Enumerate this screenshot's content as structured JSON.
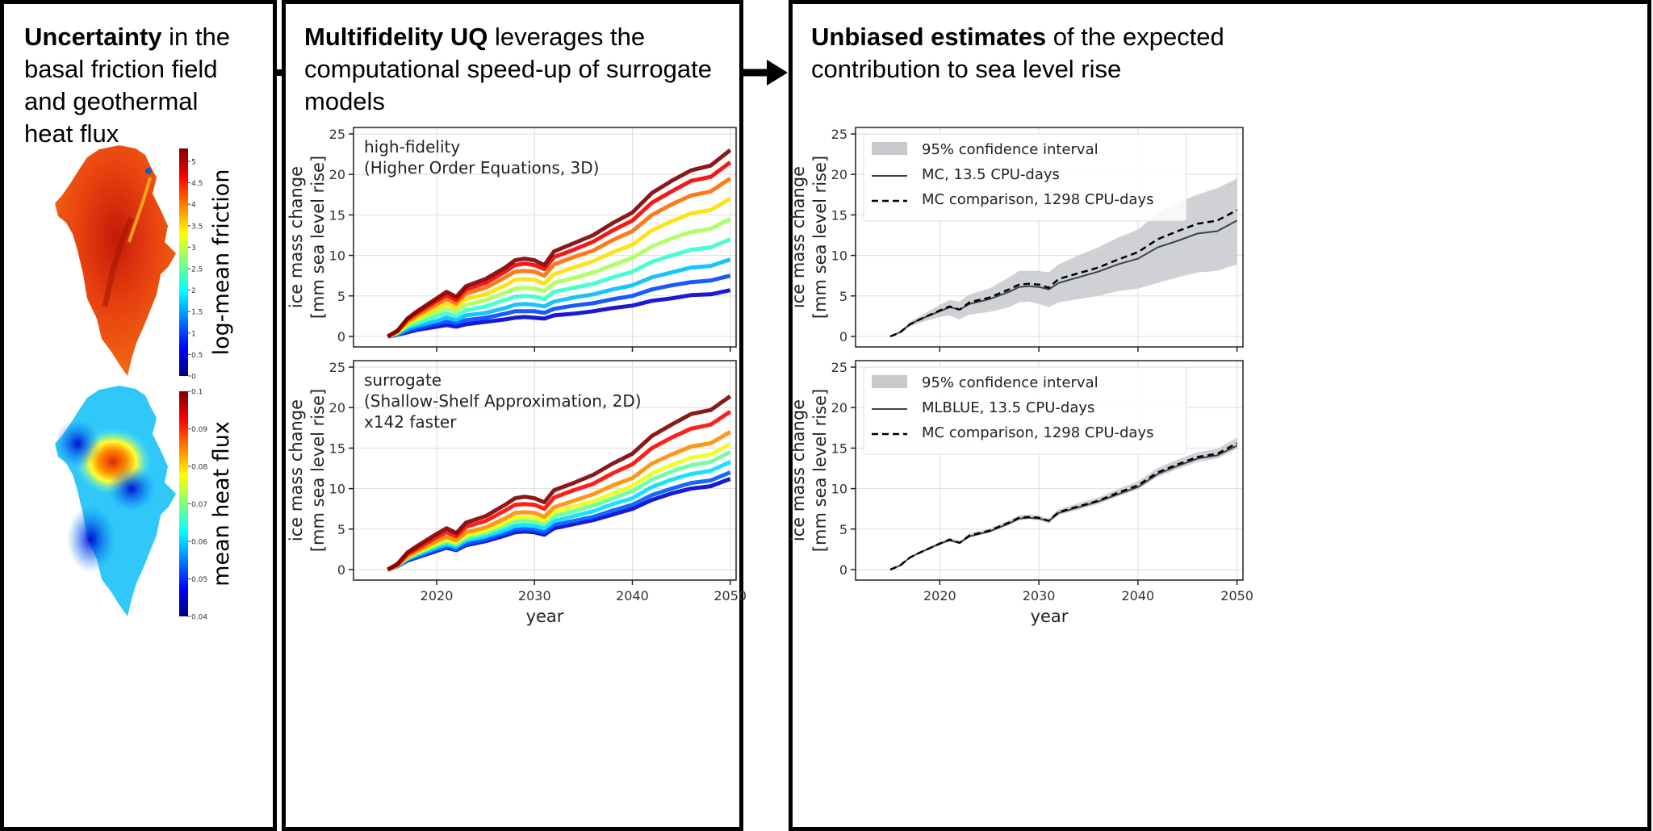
{
  "panels": {
    "left": {
      "title_bold": "Uncertainty",
      "title_rest": " in the basal friction field and geothermal heat flux"
    },
    "middle": {
      "title_bold": "Multifidelity UQ",
      "title_rest": " leverages the computational speed-up of surrogate models"
    },
    "right": {
      "title_bold": "Unbiased estimates",
      "title_rest": " of the expected contribution to sea level rise"
    }
  },
  "maps": [
    {
      "label": "log-mean friction",
      "colormap": "jet",
      "ticks": [
        "0",
        "0.5",
        "1",
        "1.5",
        "2",
        "2.5",
        "3",
        "3.5",
        "4",
        "4.5",
        "5"
      ],
      "range": [
        0,
        5.3
      ]
    },
    {
      "label": "mean heat flux",
      "colormap": "jet",
      "ticks": [
        "0.04",
        "0.05",
        "0.06",
        "0.07",
        "0.08",
        "0.09",
        "0.1"
      ],
      "range": [
        0.04,
        0.1
      ]
    }
  ],
  "common_axes": {
    "ylabel_line1": "ice mass change",
    "ylabel_line2": "[mm sea level rise]",
    "xlabel": "year",
    "yticks": [
      0,
      5,
      10,
      15,
      20,
      25
    ],
    "xticks": [
      2020,
      2030,
      2040,
      2050
    ],
    "grid": true
  },
  "chart_data": [
    {
      "id": "hf",
      "type": "line",
      "annotation": [
        "high-fidelity",
        "(Higher Order Equations, 3D)"
      ],
      "colormap": "jet",
      "x": [
        2015,
        2016,
        2017,
        2018,
        2020,
        2021,
        2022,
        2023,
        2025,
        2027,
        2028,
        2029,
        2030,
        2031,
        2032,
        2034,
        2036,
        2038,
        2040,
        2042,
        2044,
        2046,
        2048,
        2050
      ],
      "series": [
        {
          "values": [
            0,
            0.2,
            0.5,
            0.8,
            1.2,
            1.4,
            1.2,
            1.5,
            1.8,
            2.1,
            2.3,
            2.4,
            2.3,
            2.2,
            2.6,
            2.8,
            3.1,
            3.5,
            3.8,
            4.4,
            4.7,
            5.1,
            5.2,
            5.7
          ]
        },
        {
          "values": [
            0,
            0.2,
            0.7,
            1.0,
            1.5,
            1.8,
            1.6,
            2.0,
            2.3,
            2.8,
            3.1,
            3.1,
            3.1,
            2.9,
            3.4,
            3.8,
            4.1,
            4.6,
            5.0,
            5.8,
            6.3,
            6.7,
            6.9,
            7.5
          ]
        },
        {
          "values": [
            0,
            0.3,
            0.9,
            1.3,
            1.9,
            2.3,
            2.0,
            2.6,
            2.9,
            3.5,
            3.9,
            4.0,
            3.9,
            3.7,
            4.3,
            4.8,
            5.2,
            5.8,
            6.3,
            7.3,
            7.9,
            8.5,
            8.7,
            9.5
          ]
        },
        {
          "values": [
            0,
            0.4,
            1.2,
            1.6,
            2.5,
            2.8,
            2.5,
            3.2,
            3.7,
            4.5,
            4.9,
            5.0,
            4.9,
            4.6,
            5.5,
            6.0,
            6.5,
            7.3,
            8.0,
            9.2,
            10.0,
            10.7,
            11.0,
            12.0
          ]
        },
        {
          "values": [
            0,
            0.5,
            1.4,
            2.0,
            3.0,
            3.4,
            3.1,
            3.9,
            4.5,
            5.4,
            5.9,
            6.0,
            5.9,
            5.6,
            6.6,
            7.2,
            7.9,
            8.8,
            9.7,
            11.1,
            12.1,
            12.9,
            13.3,
            14.5
          ]
        },
        {
          "values": [
            0,
            0.5,
            1.6,
            2.3,
            3.5,
            4.0,
            3.6,
            4.6,
            5.2,
            6.3,
            7.0,
            7.1,
            7.0,
            6.5,
            7.7,
            8.5,
            9.3,
            10.4,
            11.3,
            13.1,
            14.2,
            15.2,
            15.6,
            17.0
          ]
        },
        {
          "values": [
            0,
            0.6,
            1.9,
            2.6,
            4.0,
            4.6,
            4.1,
            5.3,
            6.0,
            7.3,
            8.0,
            8.1,
            8.0,
            7.5,
            8.9,
            9.8,
            10.6,
            11.9,
            13.0,
            15.0,
            16.3,
            17.4,
            17.9,
            19.5
          ]
        },
        {
          "values": [
            0,
            0.7,
            2.1,
            2.9,
            4.4,
            5.1,
            4.5,
            5.8,
            6.6,
            8.0,
            8.8,
            9.0,
            8.8,
            8.3,
            9.8,
            10.7,
            11.7,
            13.1,
            14.3,
            16.5,
            17.9,
            19.2,
            19.7,
            21.5
          ]
        },
        {
          "values": [
            0,
            0.7,
            2.2,
            3.1,
            4.7,
            5.5,
            4.9,
            6.2,
            7.1,
            8.5,
            9.4,
            9.6,
            9.4,
            8.8,
            10.5,
            11.5,
            12.5,
            14.0,
            15.3,
            17.7,
            19.2,
            20.5,
            21.1,
            23.0
          ]
        }
      ]
    },
    {
      "id": "sur",
      "type": "line",
      "annotation": [
        "surrogate",
        "(Shallow-Shelf Approximation, 2D)",
        "x142 faster"
      ],
      "colormap": "jet",
      "x": [
        2015,
        2016,
        2017,
        2018,
        2020,
        2021,
        2022,
        2023,
        2025,
        2027,
        2028,
        2029,
        2030,
        2031,
        2032,
        2034,
        2036,
        2038,
        2040,
        2042,
        2044,
        2046,
        2048,
        2050
      ],
      "series": [
        {
          "values": [
            0,
            0.4,
            1.1,
            1.5,
            2.3,
            2.7,
            2.4,
            3.0,
            3.5,
            4.2,
            4.6,
            4.7,
            4.6,
            4.3,
            5.1,
            5.6,
            6.1,
            6.8,
            7.5,
            8.6,
            9.4,
            10.0,
            10.3,
            11.2
          ]
        },
        {
          "values": [
            0,
            0.4,
            1.2,
            1.6,
            2.5,
            2.8,
            2.5,
            3.2,
            3.7,
            4.5,
            4.9,
            5.0,
            4.9,
            4.6,
            5.5,
            6.0,
            6.5,
            7.3,
            8.0,
            9.2,
            10.0,
            10.7,
            11.0,
            12.0
          ]
        },
        {
          "values": [
            0,
            0.4,
            1.3,
            1.8,
            2.7,
            3.1,
            2.8,
            3.6,
            4.1,
            4.9,
            5.4,
            5.5,
            5.4,
            5.1,
            6.0,
            6.6,
            7.2,
            8.1,
            8.8,
            10.2,
            11.1,
            11.8,
            12.2,
            13.3
          ]
        },
        {
          "values": [
            0,
            0.5,
            1.4,
            2.0,
            3.0,
            3.4,
            3.1,
            3.9,
            4.5,
            5.4,
            5.9,
            6.0,
            5.9,
            5.6,
            6.6,
            7.2,
            7.9,
            8.8,
            9.7,
            11.1,
            12.1,
            12.9,
            13.3,
            14.5
          ]
        },
        {
          "values": [
            0,
            0.5,
            1.5,
            2.1,
            3.2,
            3.7,
            3.3,
            4.2,
            4.8,
            5.8,
            6.4,
            6.5,
            6.4,
            6.0,
            7.1,
            7.8,
            8.4,
            9.4,
            10.3,
            11.9,
            12.9,
            13.8,
            14.2,
            15.5
          ]
        },
        {
          "values": [
            0,
            0.5,
            1.6,
            2.3,
            3.5,
            4.0,
            3.6,
            4.6,
            5.2,
            6.3,
            7.0,
            7.1,
            7.0,
            6.5,
            7.7,
            8.5,
            9.3,
            10.4,
            11.3,
            13.1,
            14.2,
            15.2,
            15.6,
            17.0
          ]
        },
        {
          "values": [
            0,
            0.6,
            1.9,
            2.6,
            4.0,
            4.6,
            4.1,
            5.3,
            6.0,
            7.3,
            8.0,
            8.1,
            8.0,
            7.5,
            8.9,
            9.8,
            10.6,
            11.9,
            13.0,
            15.0,
            16.3,
            17.4,
            17.9,
            19.5
          ]
        },
        {
          "values": [
            0,
            0.7,
            2.1,
            2.9,
            4.4,
            5.1,
            4.5,
            5.8,
            6.6,
            8.0,
            8.8,
            9.0,
            8.8,
            8.3,
            9.8,
            10.7,
            11.7,
            13.1,
            14.3,
            16.5,
            17.9,
            19.2,
            19.7,
            21.4
          ]
        }
      ]
    },
    {
      "id": "mc",
      "type": "line",
      "legend": [
        "95% confidence interval",
        "MC, 13.5 CPU-days",
        "MC comparison, 1298 CPU-days"
      ],
      "legend_position": "top-left",
      "colors": {
        "band": "#c8c9cc",
        "estimate": "#3a434d",
        "comparison": "#000000"
      },
      "x": [
        2015,
        2016,
        2017,
        2018,
        2020,
        2021,
        2022,
        2023,
        2025,
        2027,
        2028,
        2029,
        2030,
        2031,
        2032,
        2034,
        2036,
        2038,
        2040,
        2042,
        2044,
        2046,
        2048,
        2050
      ],
      "ci_lower": [
        0,
        0.4,
        1.2,
        1.7,
        2.4,
        2.6,
        2.1,
        2.7,
        3.0,
        3.6,
        4.2,
        4.3,
        4.0,
        3.6,
        4.2,
        4.6,
        5.0,
        5.6,
        5.9,
        6.6,
        7.3,
        7.9,
        8.1,
        8.9
      ],
      "ci_upper": [
        0,
        0.6,
        1.8,
        2.5,
        3.9,
        4.5,
        4.3,
        5.2,
        5.9,
        7.3,
        8.1,
        8.1,
        8.1,
        7.9,
        8.9,
        10.0,
        11.0,
        12.2,
        13.2,
        15.2,
        16.5,
        17.5,
        18.3,
        19.5
      ],
      "estimate": [
        0,
        0.5,
        1.5,
        2.1,
        3.1,
        3.6,
        3.3,
        4.0,
        4.6,
        5.5,
        6.1,
        6.2,
        6.1,
        5.8,
        6.6,
        7.3,
        8.0,
        8.9,
        9.6,
        11.0,
        11.8,
        12.7,
        13.0,
        14.3
      ],
      "comparison": [
        0,
        0.5,
        1.5,
        2.1,
        3.2,
        3.7,
        3.3,
        4.2,
        4.8,
        5.8,
        6.4,
        6.5,
        6.4,
        6.0,
        7.1,
        7.8,
        8.5,
        9.5,
        10.4,
        12.0,
        13.0,
        13.9,
        14.3,
        15.6
      ]
    },
    {
      "id": "mlblue",
      "type": "line",
      "legend": [
        "95% confidence interval",
        "MLBLUE, 13.5 CPU-days",
        "MC comparison, 1298 CPU-days"
      ],
      "legend_position": "top-left",
      "colors": {
        "band": "#c8c9cc",
        "estimate": "#3a434d",
        "comparison": "#000000"
      },
      "x": [
        2015,
        2016,
        2017,
        2018,
        2020,
        2021,
        2022,
        2023,
        2025,
        2027,
        2028,
        2029,
        2030,
        2031,
        2032,
        2034,
        2036,
        2038,
        2040,
        2042,
        2044,
        2046,
        2048,
        2050
      ],
      "ci_lower": [
        0,
        0.45,
        1.4,
        1.95,
        3.0,
        3.5,
        3.1,
        3.95,
        4.55,
        5.5,
        6.1,
        6.2,
        6.1,
        5.7,
        6.75,
        7.4,
        8.1,
        9.05,
        9.9,
        11.45,
        12.4,
        13.3,
        13.7,
        14.9
      ],
      "ci_upper": [
        0,
        0.55,
        1.6,
        2.25,
        3.4,
        3.9,
        3.5,
        4.45,
        5.05,
        6.1,
        6.7,
        6.8,
        6.7,
        6.3,
        7.45,
        8.2,
        8.9,
        9.95,
        10.9,
        12.55,
        13.6,
        14.5,
        14.9,
        16.3
      ],
      "estimate": [
        0,
        0.5,
        1.5,
        2.1,
        3.2,
        3.6,
        3.3,
        4.1,
        4.7,
        5.7,
        6.3,
        6.4,
        6.3,
        6.0,
        7.0,
        7.7,
        8.4,
        9.3,
        10.2,
        11.8,
        12.8,
        13.7,
        14.1,
        15.3
      ],
      "comparison": [
        0,
        0.5,
        1.5,
        2.1,
        3.2,
        3.7,
        3.3,
        4.2,
        4.8,
        5.8,
        6.4,
        6.5,
        6.4,
        6.0,
        7.1,
        7.8,
        8.5,
        9.5,
        10.4,
        12.0,
        13.0,
        13.9,
        14.3,
        15.6
      ]
    }
  ]
}
